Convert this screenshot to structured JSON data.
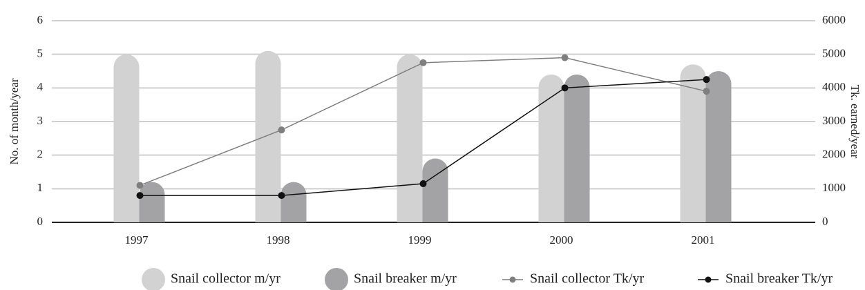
{
  "chart_data": {
    "type": "bar_line",
    "categories": [
      "1997",
      "1998",
      "1999",
      "2000",
      "2001"
    ],
    "y_label": "No. of month/year",
    "y2_label": "Tk. earned/year",
    "ylim": [
      0,
      6
    ],
    "yticks": [
      0,
      1,
      2,
      3,
      4,
      5,
      6
    ],
    "y2lim": [
      0,
      6000
    ],
    "y2ticks": [
      0,
      1000,
      2000,
      3000,
      4000,
      5000,
      6000
    ],
    "grid": true,
    "legend": "bottom",
    "series": [
      {
        "name": "Snail collector m/yr",
        "type": "bar",
        "color": "#d2d2d3",
        "values": [
          5.0,
          5.1,
          5.0,
          4.4,
          4.7
        ]
      },
      {
        "name": "Snail breaker m/yr",
        "type": "bar",
        "color": "#a3a3a5",
        "values": [
          1.2,
          1.2,
          1.9,
          4.4,
          4.5
        ]
      },
      {
        "name": "Snail collector Tk/yr",
        "type": "line",
        "axis": "y2",
        "color": "#7f7f7f",
        "values": [
          1100,
          2750,
          4750,
          4900,
          3900
        ]
      },
      {
        "name": "Snail breaker Tk/yr",
        "type": "line",
        "axis": "y2",
        "color": "#111111",
        "values": [
          800,
          800,
          1150,
          4000,
          4250
        ]
      }
    ]
  }
}
